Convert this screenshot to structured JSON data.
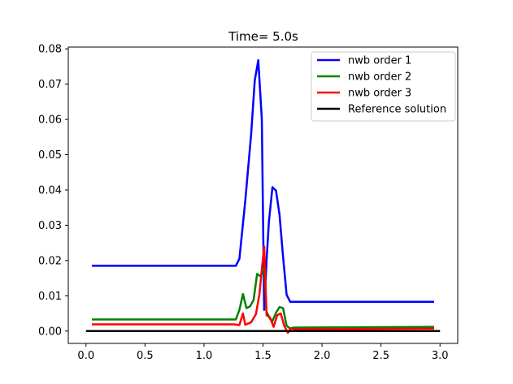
{
  "chart_data": {
    "type": "line",
    "title": "Time= 5.0s",
    "xlabel": "",
    "ylabel": "",
    "xlim": [
      -0.15,
      3.15
    ],
    "ylim": [
      -0.0035,
      0.0805
    ],
    "x_ticks": [
      {
        "value": 0.0,
        "label": "0.0"
      },
      {
        "value": 0.5,
        "label": "0.5"
      },
      {
        "value": 1.0,
        "label": "1.0"
      },
      {
        "value": 1.5,
        "label": "1.5"
      },
      {
        "value": 2.0,
        "label": "2.0"
      },
      {
        "value": 2.5,
        "label": "2.5"
      },
      {
        "value": 3.0,
        "label": "3.0"
      }
    ],
    "y_ticks": [
      {
        "value": 0.0,
        "label": "0.00"
      },
      {
        "value": 0.01,
        "label": "0.01"
      },
      {
        "value": 0.02,
        "label": "0.02"
      },
      {
        "value": 0.03,
        "label": "0.03"
      },
      {
        "value": 0.04,
        "label": "0.04"
      },
      {
        "value": 0.05,
        "label": "0.05"
      },
      {
        "value": 0.06,
        "label": "0.06"
      },
      {
        "value": 0.07,
        "label": "0.07"
      },
      {
        "value": 0.08,
        "label": "0.08"
      }
    ],
    "grid": false,
    "legend_position": "top-right",
    "series": [
      {
        "name": "nwb order 1",
        "color": "#0000ff",
        "points": [
          [
            0.05,
            0.0185
          ],
          [
            1.27,
            0.0185
          ],
          [
            1.3,
            0.0205
          ],
          [
            1.35,
            0.037
          ],
          [
            1.4,
            0.056
          ],
          [
            1.43,
            0.071
          ],
          [
            1.46,
            0.0768
          ],
          [
            1.49,
            0.06
          ],
          [
            1.51,
            0.006
          ],
          [
            1.53,
            0.02
          ],
          [
            1.55,
            0.031
          ],
          [
            1.58,
            0.0408
          ],
          [
            1.61,
            0.0398
          ],
          [
            1.64,
            0.033
          ],
          [
            1.67,
            0.021
          ],
          [
            1.7,
            0.0103
          ],
          [
            1.73,
            0.0083
          ],
          [
            2.95,
            0.0083
          ]
        ]
      },
      {
        "name": "nwb order 2",
        "color": "#008000",
        "points": [
          [
            0.05,
            0.0033
          ],
          [
            1.27,
            0.0033
          ],
          [
            1.3,
            0.006
          ],
          [
            1.33,
            0.0105
          ],
          [
            1.36,
            0.0065
          ],
          [
            1.39,
            0.007
          ],
          [
            1.42,
            0.0088
          ],
          [
            1.45,
            0.0162
          ],
          [
            1.48,
            0.0155
          ],
          [
            1.51,
            0.018
          ],
          [
            1.53,
            0.0055
          ],
          [
            1.56,
            0.0035
          ],
          [
            1.58,
            0.0028
          ],
          [
            1.61,
            0.0052
          ],
          [
            1.64,
            0.0068
          ],
          [
            1.67,
            0.0065
          ],
          [
            1.7,
            0.0015
          ],
          [
            1.73,
            0.0007
          ],
          [
            1.76,
            0.001
          ],
          [
            2.95,
            0.0012
          ]
        ]
      },
      {
        "name": "nwb order 3",
        "color": "#ff0000",
        "points": [
          [
            0.05,
            0.0019
          ],
          [
            1.25,
            0.0019
          ],
          [
            1.3,
            0.0017
          ],
          [
            1.33,
            0.005
          ],
          [
            1.35,
            0.0018
          ],
          [
            1.4,
            0.0025
          ],
          [
            1.44,
            0.0048
          ],
          [
            1.47,
            0.0105
          ],
          [
            1.49,
            0.0175
          ],
          [
            1.51,
            0.024
          ],
          [
            1.53,
            0.0045
          ],
          [
            1.56,
            0.0038
          ],
          [
            1.59,
            0.0012
          ],
          [
            1.62,
            0.0045
          ],
          [
            1.65,
            0.005
          ],
          [
            1.68,
            0.0015
          ],
          [
            1.71,
            -0.0005
          ],
          [
            1.74,
            0.0008
          ],
          [
            1.77,
            0.0005
          ],
          [
            2.95,
            0.0007
          ]
        ]
      },
      {
        "name": "Reference solution",
        "color": "#000000",
        "points": [
          [
            0.0,
            0.0
          ],
          [
            3.0,
            0.0
          ]
        ]
      }
    ]
  }
}
